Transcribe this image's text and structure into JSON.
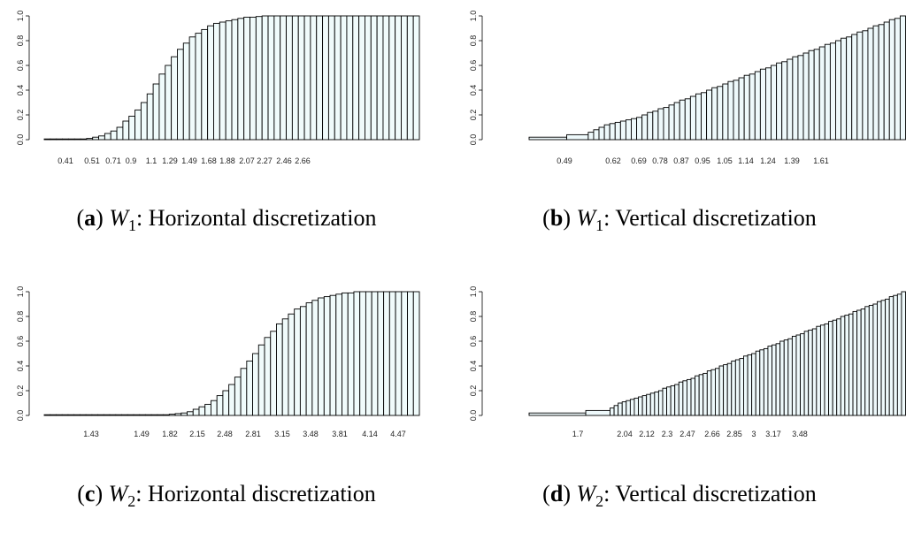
{
  "chart_data": [
    {
      "id": "a",
      "type": "bar",
      "caption": {
        "letter": "a",
        "var": "W",
        "sub": "1",
        "text": ": Horizontal discretization"
      },
      "y_ticks": [
        "0.0",
        "0.2",
        "0.4",
        "0.6",
        "0.8",
        "1.0"
      ],
      "ylim": [
        0,
        1
      ],
      "x_tick_labels": [
        "0.41",
        "0.51",
        "0.71",
        "0.9",
        "1.1",
        "1.29",
        "1.49",
        "1.68",
        "1.88",
        "2.07",
        "2.27",
        "2.46",
        "2.66"
      ],
      "fill": "#f0fbfb",
      "values": [
        0,
        0,
        0,
        0,
        0,
        0,
        0.005,
        0.01,
        0.02,
        0.03,
        0.05,
        0.07,
        0.1,
        0.15,
        0.19,
        0.24,
        0.3,
        0.37,
        0.45,
        0.53,
        0.6,
        0.67,
        0.73,
        0.78,
        0.83,
        0.86,
        0.89,
        0.92,
        0.94,
        0.95,
        0.96,
        0.97,
        0.98,
        0.99,
        0.99,
        0.995,
        1,
        1,
        1,
        1,
        1,
        1,
        1,
        1,
        1,
        1,
        1,
        1,
        1,
        1,
        1,
        1,
        1,
        1,
        1,
        1,
        1,
        1,
        1,
        1,
        1,
        1
      ]
    },
    {
      "id": "b",
      "type": "bar",
      "caption": {
        "letter": "b",
        "var": "W",
        "sub": "1",
        "text": ": Vertical discretization"
      },
      "y_ticks": [
        "0.0",
        "0.2",
        "0.4",
        "0.6",
        "0.8",
        "1.0"
      ],
      "ylim": [
        0,
        1
      ],
      "x_tick_labels": [
        "0.49",
        "0.62",
        "0.69",
        "0.78",
        "0.87",
        "0.95",
        "1.05",
        "1.14",
        "1.24",
        "1.39",
        "1.61"
      ],
      "fill": "#eef9fb",
      "values": [
        0.02,
        0.04,
        0.06,
        0.08,
        0.1,
        0.12,
        0.13,
        0.14,
        0.15,
        0.16,
        0.17,
        0.18,
        0.2,
        0.22,
        0.23,
        0.25,
        0.26,
        0.28,
        0.3,
        0.32,
        0.33,
        0.35,
        0.37,
        0.38,
        0.4,
        0.42,
        0.43,
        0.45,
        0.47,
        0.48,
        0.5,
        0.52,
        0.53,
        0.55,
        0.57,
        0.58,
        0.6,
        0.62,
        0.63,
        0.65,
        0.67,
        0.68,
        0.7,
        0.72,
        0.73,
        0.75,
        0.77,
        0.78,
        0.8,
        0.82,
        0.83,
        0.85,
        0.87,
        0.88,
        0.9,
        0.92,
        0.93,
        0.95,
        0.97,
        0.98,
        1.0
      ],
      "widths": [
        7,
        4
      ]
    },
    {
      "id": "c",
      "type": "bar",
      "caption": {
        "letter": "c",
        "var": "W",
        "sub": "2",
        "text": ": Horizontal discretization"
      },
      "y_ticks": [
        "0.0",
        "0.2",
        "0.4",
        "0.6",
        "0.8",
        "1.0"
      ],
      "ylim": [
        0,
        1
      ],
      "x_tick_labels": [
        "1.43",
        "1.49",
        "1.82",
        "2.15",
        "2.48",
        "2.81",
        "3.15",
        "3.48",
        "3.81",
        "4.14",
        "4.47"
      ],
      "fill": "#f0fbfb",
      "values": [
        0,
        0,
        0,
        0,
        0,
        0,
        0,
        0,
        0,
        0,
        0,
        0,
        0,
        0,
        0,
        0,
        0,
        0,
        0,
        0,
        0.005,
        0.01,
        0.015,
        0.02,
        0.03,
        0.05,
        0.07,
        0.09,
        0.12,
        0.16,
        0.2,
        0.25,
        0.31,
        0.38,
        0.44,
        0.5,
        0.57,
        0.63,
        0.68,
        0.74,
        0.78,
        0.82,
        0.86,
        0.88,
        0.91,
        0.93,
        0.95,
        0.96,
        0.97,
        0.98,
        0.99,
        0.99,
        1,
        1,
        1,
        1,
        1,
        1,
        1,
        1,
        1,
        1,
        1
      ]
    },
    {
      "id": "d",
      "type": "bar",
      "caption": {
        "letter": "d",
        "var": "W",
        "sub": "2",
        "text": ": Vertical discretization"
      },
      "y_ticks": [
        "0.0",
        "0.2",
        "0.4",
        "0.6",
        "0.8",
        "1.0"
      ],
      "ylim": [
        0,
        1
      ],
      "x_tick_labels": [
        "1.7",
        "2.04",
        "2.12",
        "2.3",
        "2.47",
        "2.66",
        "2.85",
        "3",
        "3.17",
        "3.48"
      ],
      "fill": "#eef9fb",
      "values": [
        0.02,
        0.04,
        0.06,
        0.08,
        0.1,
        0.11,
        0.12,
        0.13,
        0.14,
        0.15,
        0.16,
        0.17,
        0.18,
        0.19,
        0.2,
        0.22,
        0.23,
        0.24,
        0.25,
        0.27,
        0.28,
        0.29,
        0.3,
        0.32,
        0.33,
        0.34,
        0.36,
        0.37,
        0.38,
        0.4,
        0.41,
        0.42,
        0.44,
        0.45,
        0.46,
        0.48,
        0.49,
        0.5,
        0.52,
        0.53,
        0.54,
        0.56,
        0.57,
        0.58,
        0.6,
        0.61,
        0.62,
        0.64,
        0.65,
        0.66,
        0.68,
        0.69,
        0.7,
        0.72,
        0.73,
        0.74,
        0.76,
        0.77,
        0.78,
        0.8,
        0.81,
        0.82,
        0.84,
        0.85,
        0.86,
        0.88,
        0.89,
        0.9,
        0.92,
        0.93,
        0.94,
        0.96,
        0.97,
        0.98,
        1.0
      ],
      "widths": [
        14,
        6
      ]
    }
  ]
}
